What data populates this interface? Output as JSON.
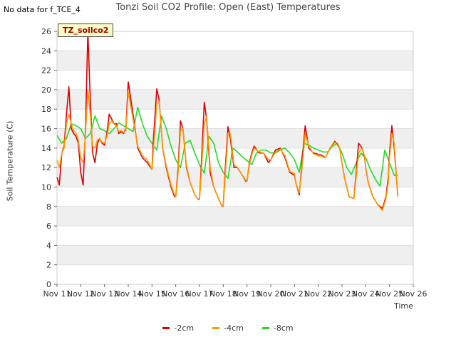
{
  "header": {
    "no_data_text": "No data for f_TCE_4",
    "title": "Tonzi Soil CO2 Profile: Open (East) Temperatures",
    "badge": "TZ_soilco2"
  },
  "chart_data": {
    "type": "line",
    "title": "Tonzi Soil CO2 Profile: Open (East) Temperatures",
    "xlabel": "Time",
    "ylabel": "Soil Temperature (C)",
    "ylim": [
      0,
      26
    ],
    "yticks": [
      0,
      2,
      4,
      6,
      8,
      10,
      12,
      14,
      16,
      18,
      20,
      22,
      24,
      26
    ],
    "xlim": [
      11,
      26
    ],
    "xtick_labels": [
      "Nov 11",
      "Nov 12",
      "Nov 13",
      "Nov 14",
      "Nov 15",
      "Nov 16",
      "Nov 17",
      "Nov 18",
      "Nov 19",
      "Nov 20",
      "Nov 21",
      "Nov 22",
      "Nov 23",
      "Nov 24",
      "Nov 25",
      "Nov 26"
    ],
    "grid": "horizontal bands",
    "legend_position": "bottom",
    "series": [
      {
        "name": "-2cm",
        "color": "#dd0000",
        "x": [
          11.0,
          11.1,
          11.2,
          11.3,
          11.4,
          11.5,
          11.6,
          11.7,
          11.8,
          11.9,
          12.0,
          12.1,
          12.2,
          12.3,
          12.4,
          12.5,
          12.6,
          12.7,
          12.8,
          12.9,
          13.0,
          13.1,
          13.2,
          13.3,
          13.4,
          13.5,
          13.6,
          13.7,
          13.8,
          13.9,
          14.0,
          14.2,
          14.4,
          14.6,
          14.8,
          15.0,
          15.05,
          15.2,
          15.3,
          15.45,
          15.6,
          15.8,
          15.95,
          16.0,
          16.1,
          16.2,
          16.3,
          16.45,
          16.6,
          16.8,
          16.95,
          17.0,
          17.05,
          17.2,
          17.3,
          17.45,
          17.6,
          17.8,
          17.95,
          18.0,
          18.1,
          18.2,
          18.3,
          18.45,
          18.6,
          18.8,
          18.95,
          19.0,
          19.1,
          19.2,
          19.3,
          19.5,
          19.7,
          19.9,
          20.0,
          20.2,
          20.4,
          20.6,
          20.8,
          21.0,
          21.05,
          21.2,
          21.3,
          21.45,
          21.6,
          21.8,
          21.95,
          22.0,
          22.1,
          22.2,
          22.3,
          22.5,
          22.7,
          22.9,
          23.0,
          23.1,
          23.3,
          23.5,
          23.7,
          23.85,
          23.95,
          24.0,
          24.1,
          24.3,
          24.5,
          24.7,
          24.85,
          24.95,
          25.0,
          25.1,
          25.2,
          25.35
        ],
        "y": [
          11.0,
          10.2,
          13.5,
          14.2,
          17.5,
          20.3,
          16.0,
          15.5,
          15.2,
          14.5,
          11.5,
          10.2,
          16.0,
          26.0,
          19.0,
          13.5,
          12.5,
          14.5,
          15.0,
          14.5,
          14.3,
          15.5,
          17.5,
          17.0,
          16.5,
          16.5,
          15.5,
          15.7,
          15.5,
          16.0,
          20.8,
          17.5,
          14.0,
          13.0,
          12.5,
          11.8,
          14.5,
          20.1,
          19.0,
          14.0,
          12.0,
          10.0,
          9.0,
          9.0,
          12.0,
          16.8,
          16.0,
          12.0,
          10.5,
          9.2,
          8.7,
          8.8,
          11.0,
          18.7,
          17.0,
          11.5,
          10.0,
          8.8,
          8.0,
          8.1,
          12.5,
          16.2,
          15.0,
          12.0,
          12.0,
          11.2,
          10.6,
          10.6,
          12.5,
          13.5,
          14.2,
          13.5,
          13.5,
          12.5,
          12.8,
          13.8,
          14.0,
          13.0,
          11.5,
          11.2,
          10.5,
          9.2,
          12.0,
          16.3,
          14.0,
          13.5,
          13.4,
          13.3,
          13.3,
          13.2,
          13.0,
          14.0,
          14.7,
          14.0,
          12.5,
          11.0,
          9.0,
          8.8,
          14.5,
          14.0,
          13.0,
          12.0,
          10.5,
          9.0,
          8.2,
          7.8,
          9.0,
          11.0,
          13.5,
          16.3,
          14.0,
          9.1
        ]
      },
      {
        "name": "-4cm",
        "color": "#ff9900",
        "x": [
          11.0,
          11.1,
          11.2,
          11.3,
          11.4,
          11.5,
          11.6,
          11.7,
          11.8,
          11.9,
          12.0,
          12.1,
          12.2,
          12.3,
          12.4,
          12.5,
          12.6,
          12.7,
          12.8,
          12.9,
          13.0,
          13.1,
          13.2,
          13.3,
          13.4,
          13.5,
          13.6,
          13.7,
          13.8,
          13.9,
          14.0,
          14.2,
          14.4,
          14.6,
          14.8,
          15.0,
          15.05,
          15.2,
          15.3,
          15.45,
          15.6,
          15.8,
          15.95,
          16.0,
          16.1,
          16.2,
          16.3,
          16.45,
          16.6,
          16.8,
          16.95,
          17.0,
          17.05,
          17.2,
          17.3,
          17.45,
          17.6,
          17.8,
          17.95,
          18.0,
          18.1,
          18.2,
          18.3,
          18.45,
          18.6,
          18.8,
          18.95,
          19.0,
          19.1,
          19.2,
          19.3,
          19.5,
          19.7,
          19.9,
          20.0,
          20.2,
          20.4,
          20.6,
          20.8,
          21.0,
          21.05,
          21.2,
          21.3,
          21.45,
          21.6,
          21.8,
          21.95,
          22.0,
          22.1,
          22.2,
          22.3,
          22.5,
          22.7,
          22.9,
          23.0,
          23.1,
          23.3,
          23.5,
          23.7,
          23.85,
          23.95,
          24.0,
          24.1,
          24.3,
          24.5,
          24.7,
          24.85,
          24.95,
          25.0,
          25.1,
          25.2,
          25.35
        ],
        "y": [
          12.8,
          12.0,
          13.5,
          14.0,
          16.5,
          17.5,
          16.5,
          15.8,
          15.5,
          14.8,
          13.0,
          12.5,
          15.5,
          20.0,
          17.5,
          14.2,
          14.0,
          14.8,
          15.0,
          14.6,
          14.5,
          15.2,
          16.5,
          16.8,
          16.5,
          16.3,
          15.7,
          15.8,
          15.6,
          15.8,
          19.8,
          17.0,
          14.2,
          13.2,
          12.8,
          11.8,
          13.5,
          18.5,
          18.8,
          14.0,
          12.2,
          10.2,
          9.2,
          9.0,
          11.5,
          15.8,
          16.0,
          12.2,
          10.5,
          9.2,
          8.7,
          8.7,
          10.5,
          16.5,
          17.3,
          12.0,
          10.0,
          8.8,
          8.0,
          8.0,
          11.8,
          15.5,
          15.5,
          12.3,
          12.0,
          11.2,
          10.7,
          10.6,
          12.3,
          13.3,
          14.0,
          13.6,
          13.5,
          12.8,
          12.8,
          13.6,
          13.9,
          13.2,
          11.6,
          11.4,
          10.5,
          9.4,
          11.5,
          15.5,
          14.2,
          13.4,
          13.3,
          13.2,
          13.2,
          13.1,
          13.0,
          14.0,
          14.6,
          14.0,
          12.5,
          11.0,
          9.0,
          8.8,
          13.5,
          14.0,
          13.2,
          12.0,
          10.5,
          9.0,
          8.2,
          7.6,
          8.8,
          10.5,
          13.0,
          15.5,
          14.5,
          9.0
        ]
      },
      {
        "name": "-8cm",
        "color": "#22dd22",
        "x": [
          11.0,
          11.2,
          11.4,
          11.6,
          11.8,
          12.0,
          12.2,
          12.4,
          12.6,
          12.8,
          13.0,
          13.2,
          13.4,
          13.6,
          13.8,
          14.0,
          14.2,
          14.4,
          14.6,
          14.8,
          15.0,
          15.2,
          15.4,
          15.6,
          15.8,
          16.0,
          16.2,
          16.4,
          16.6,
          16.8,
          17.0,
          17.2,
          17.4,
          17.6,
          17.8,
          18.0,
          18.2,
          18.4,
          18.6,
          18.8,
          19.0,
          19.2,
          19.4,
          19.6,
          19.8,
          20.0,
          20.2,
          20.4,
          20.6,
          20.8,
          21.0,
          21.2,
          21.4,
          21.6,
          21.8,
          22.0,
          22.2,
          22.4,
          22.6,
          22.8,
          23.0,
          23.2,
          23.4,
          23.6,
          23.8,
          24.0,
          24.2,
          24.4,
          24.6,
          24.8,
          25.0,
          25.2,
          25.35
        ],
        "y": [
          15.3,
          14.5,
          15.0,
          16.5,
          16.3,
          16.0,
          15.0,
          15.5,
          17.3,
          16.0,
          15.8,
          15.5,
          16.0,
          16.6,
          16.3,
          16.0,
          15.7,
          18.2,
          16.5,
          15.2,
          14.5,
          13.8,
          17.3,
          16.0,
          14.2,
          12.8,
          12.0,
          14.5,
          14.8,
          13.5,
          12.3,
          11.4,
          15.2,
          14.5,
          12.5,
          11.5,
          10.9,
          14.0,
          13.6,
          13.1,
          12.7,
          12.3,
          13.5,
          13.8,
          13.8,
          13.5,
          13.5,
          13.8,
          14.0,
          13.5,
          12.8,
          11.5,
          14.5,
          14.3,
          14.0,
          13.8,
          13.6,
          13.6,
          14.2,
          14.5,
          13.5,
          12.0,
          11.3,
          12.5,
          13.5,
          13.0,
          11.8,
          10.8,
          10.1,
          13.8,
          12.5,
          11.2,
          11.2
        ]
      }
    ]
  }
}
